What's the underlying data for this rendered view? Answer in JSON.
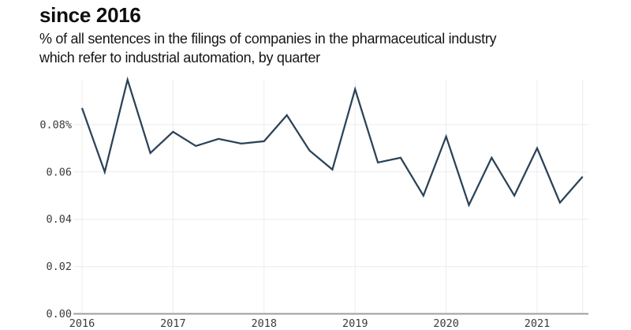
{
  "chart_data": {
    "type": "line",
    "title": "since 2016",
    "subtitle_lines": [
      "% of all sentences in the filings of companies in the pharmaceutical industry",
      "which refer to industrial automation, by quarter"
    ],
    "x": [
      "2016-Q1",
      "2016-Q2",
      "2016-Q3",
      "2016-Q4",
      "2017-Q1",
      "2017-Q2",
      "2017-Q3",
      "2017-Q4",
      "2018-Q1",
      "2018-Q2",
      "2018-Q3",
      "2018-Q4",
      "2019-Q1",
      "2019-Q2",
      "2019-Q3",
      "2019-Q4",
      "2020-Q1",
      "2020-Q2",
      "2020-Q3",
      "2020-Q4",
      "2021-Q1",
      "2021-Q2",
      "2021-Q3"
    ],
    "values": [
      0.087,
      0.06,
      0.099,
      0.068,
      0.077,
      0.071,
      0.074,
      0.072,
      0.073,
      0.084,
      0.069,
      0.061,
      0.095,
      0.064,
      0.066,
      0.05,
      0.075,
      0.046,
      0.066,
      0.05,
      0.07,
      0.047,
      0.058
    ],
    "xlabel": "",
    "ylabel": "",
    "unit": "%",
    "x_tick_labels": [
      "2016",
      "2017",
      "2018",
      "2019",
      "2020",
      "2021"
    ],
    "x_tick_indices": [
      0,
      4,
      8,
      12,
      16,
      20
    ],
    "y_ticks": [
      0.08,
      0.06,
      0.04,
      0.02,
      0
    ],
    "y_tick_labels": [
      "0.08%",
      "0.06",
      "0.04",
      "0.02",
      "0.00"
    ],
    "ylim": [
      0,
      0.099
    ],
    "grid": true,
    "legend": "none",
    "colors": {
      "line": "#2b4257",
      "grid": "#ececec",
      "axis": "#9e9e9e",
      "tick_text": "#3b3b3b",
      "background": "#ffffff"
    }
  }
}
